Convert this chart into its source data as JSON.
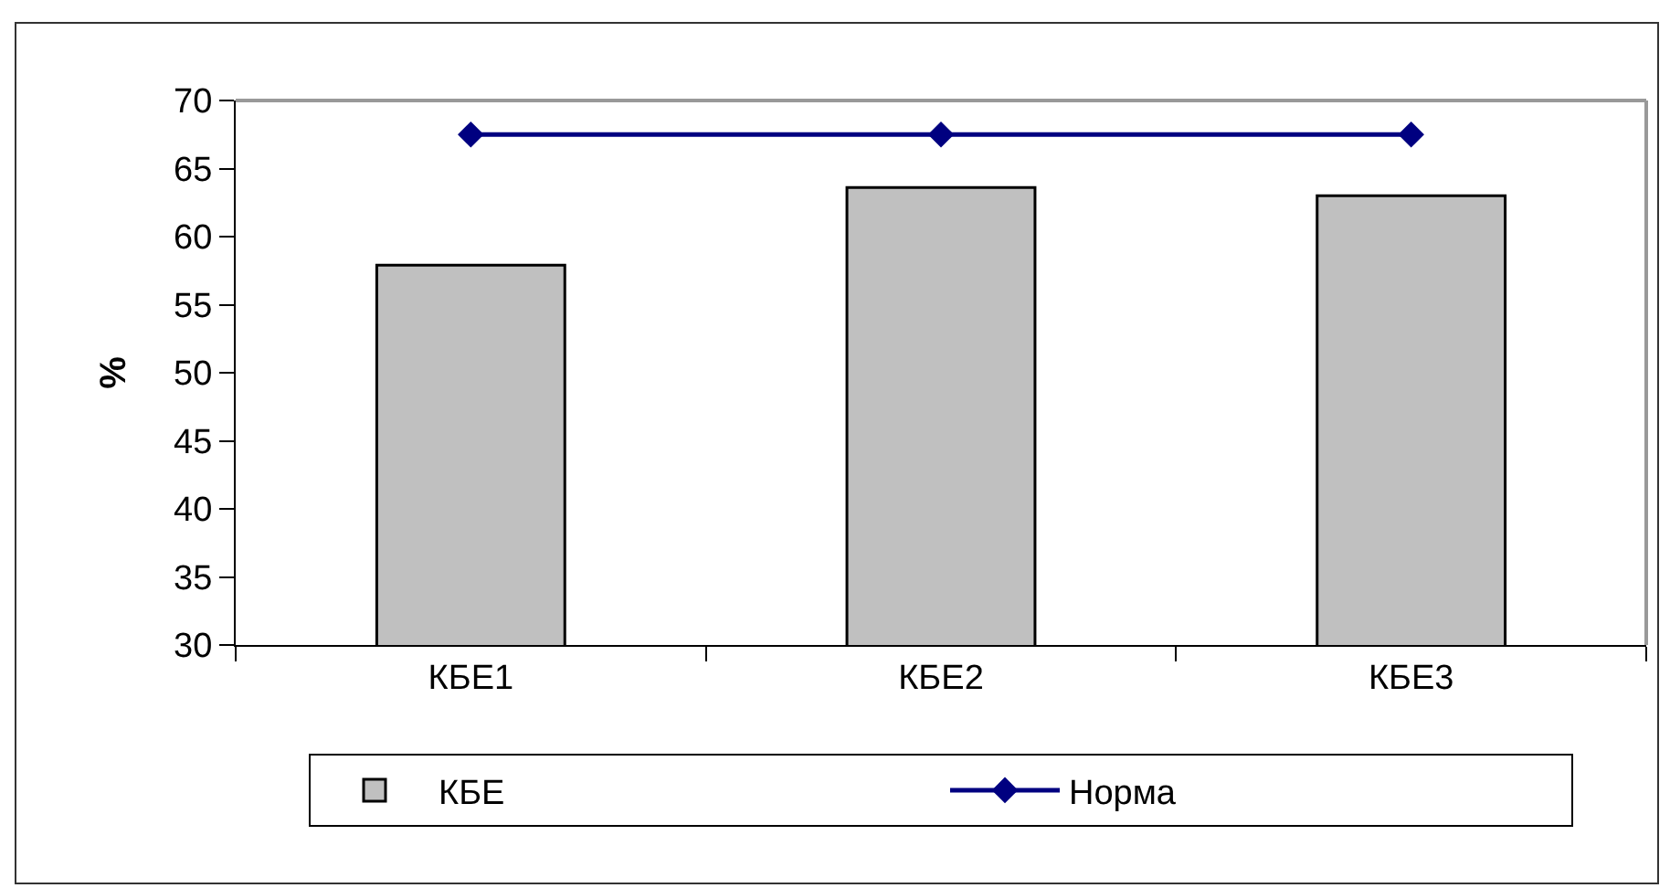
{
  "chart_data": {
    "type": "bar",
    "ylabel": "%",
    "categories": [
      "КБЕ1",
      "КБЕ2",
      "КБЕ3"
    ],
    "series": [
      {
        "name": "КБЕ",
        "color": "#c0c0c0",
        "values": [
          57.9,
          63.6,
          63.0
        ]
      },
      {
        "name": "Норма",
        "type": "line",
        "color": "#000080",
        "marker": "diamond",
        "values": [
          67.5,
          67.5,
          67.5
        ]
      }
    ],
    "ylim": [
      30,
      70
    ],
    "yticks": [
      30,
      35,
      40,
      45,
      50,
      55,
      60,
      65,
      70
    ],
    "grid": false,
    "legend": "bottom"
  }
}
